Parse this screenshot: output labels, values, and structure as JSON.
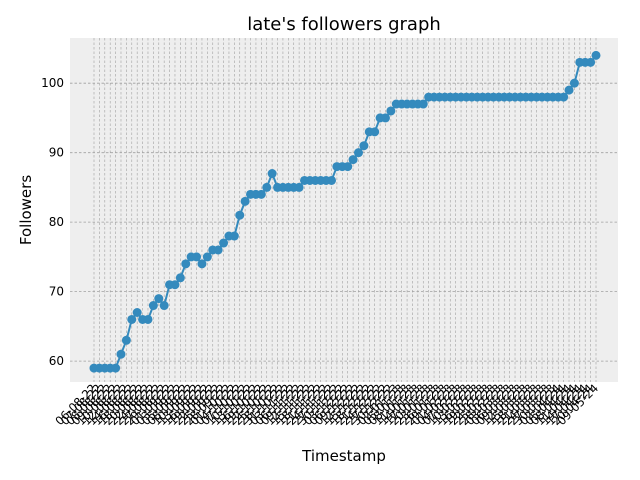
{
  "chart_data": {
    "type": "line",
    "title": "late's followers graph",
    "xlabel": "Timestamp",
    "ylabel": "Followers",
    "ylim": [
      57,
      106.5
    ],
    "yticks": [
      60,
      70,
      80,
      90,
      100
    ],
    "grid": true,
    "colors": {
      "line": "#348abd",
      "plot_bg": "#eeeeee",
      "grid": "#a0a0a0"
    },
    "x": [
      "06-08-22",
      "07-08-22",
      "08-08-22",
      "09-08-22",
      "10-08-22",
      "12-08-22",
      "14-08-22",
      "16-08-22",
      "18-08-22",
      "20-08-22",
      "22-08-22",
      "24-08-22",
      "27-08-22",
      "29-08-22",
      "01-09-22",
      "03-09-22",
      "05-09-22",
      "08-09-22",
      "10-09-22",
      "13-09-22",
      "16-09-22",
      "19-09-22",
      "22-09-22",
      "25-09-22",
      "28-09-22",
      "01-10-22",
      "04-10-22",
      "07-10-22",
      "10-10-22",
      "13-10-22",
      "16-10-22",
      "19-10-22",
      "22-10-22",
      "25-10-22",
      "28-10-22",
      "31-10-22",
      "03-11-22",
      "06-11-22",
      "09-11-22",
      "12-11-22",
      "15-11-22",
      "18-11-22",
      "21-11-22",
      "24-11-22",
      "27-11-22",
      "30-11-22",
      "03-12-22",
      "06-12-22",
      "09-12-22",
      "12-12-22",
      "15-12-22",
      "18-12-22",
      "21-12-22",
      "24-12-22",
      "27-12-22",
      "30-12-22",
      "02-01-23",
      "05-01-23",
      "08-01-23",
      "11-01-23",
      "14-01-23",
      "17-01-23",
      "20-01-23",
      "23-01-23",
      "26-01-23",
      "29-01-23",
      "01-02-23",
      "04-02-23",
      "07-02-23",
      "10-02-23",
      "13-02-23",
      "16-02-23",
      "19-02-23",
      "22-02-23",
      "25-02-23",
      "28-02-23",
      "03-03-23",
      "06-03-23",
      "09-03-23",
      "12-03-23",
      "15-03-23",
      "18-03-23",
      "21-03-23",
      "24-03-23",
      "27-03-23",
      "30-03-23",
      "02-04-24",
      "05-04-24",
      "08-04-24",
      "11-04-24",
      "14-04-24",
      "17-04-24",
      "20-04-24",
      "09-05-24"
    ],
    "series": [
      {
        "values": [
          59,
          59,
          59,
          59,
          59,
          61,
          63,
          66,
          67,
          66,
          66,
          68,
          69,
          68,
          71,
          71,
          72,
          74,
          75,
          75,
          74,
          75,
          76,
          76,
          77,
          78,
          78,
          81,
          83,
          84,
          84,
          84,
          85,
          87,
          85,
          85,
          85,
          85,
          85,
          86,
          86,
          86,
          86,
          86,
          86,
          88,
          88,
          88,
          89,
          90,
          91,
          93,
          93,
          95,
          95,
          96,
          97,
          97,
          97,
          97,
          97,
          97,
          98,
          98,
          98,
          98,
          98,
          98,
          98,
          98,
          98,
          98,
          98,
          98,
          98,
          98,
          98,
          98,
          98,
          98,
          98,
          98,
          98,
          98,
          98,
          98,
          98,
          98,
          99,
          100,
          103,
          103,
          103,
          104
        ]
      }
    ]
  }
}
